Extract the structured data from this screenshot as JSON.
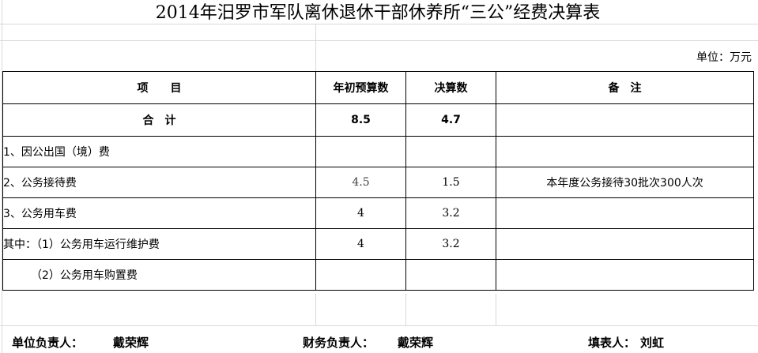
{
  "title": "2014年汨罗市军队离休退休干部休养所“三公”经费决算表",
  "unit": "单位：万元",
  "headers": {
    "item": "项　　目",
    "budget": "年初预算数",
    "actual": "决算数",
    "note": "备　注"
  },
  "total": {
    "item": "合　计",
    "budget": "8.5",
    "actual": "4.7",
    "note": ""
  },
  "rows": [
    {
      "item": "1、因公出国（境）费",
      "budget": "",
      "actual": "",
      "note": ""
    },
    {
      "item": "2、公务接待费",
      "budget": "4.5",
      "actual": "1.5",
      "note": "本年度公务接待30批次300人次"
    },
    {
      "item": "3、公务用车费",
      "budget": "4",
      "actual": "3.2",
      "note": ""
    },
    {
      "item": "其中：（1）公务用车运行维护费",
      "budget": "4",
      "actual": "3.2",
      "note": ""
    },
    {
      "item": "　　　（2）公务用车购置费",
      "budget": "",
      "actual": "",
      "note": ""
    }
  ],
  "footer": {
    "unit_head_label": "单位负责人：",
    "unit_head": "戴荣辉",
    "finance_head_label": "财务负责人：",
    "finance_head": "戴荣辉",
    "preparer_label": "填表人：",
    "preparer": "刘虹"
  }
}
